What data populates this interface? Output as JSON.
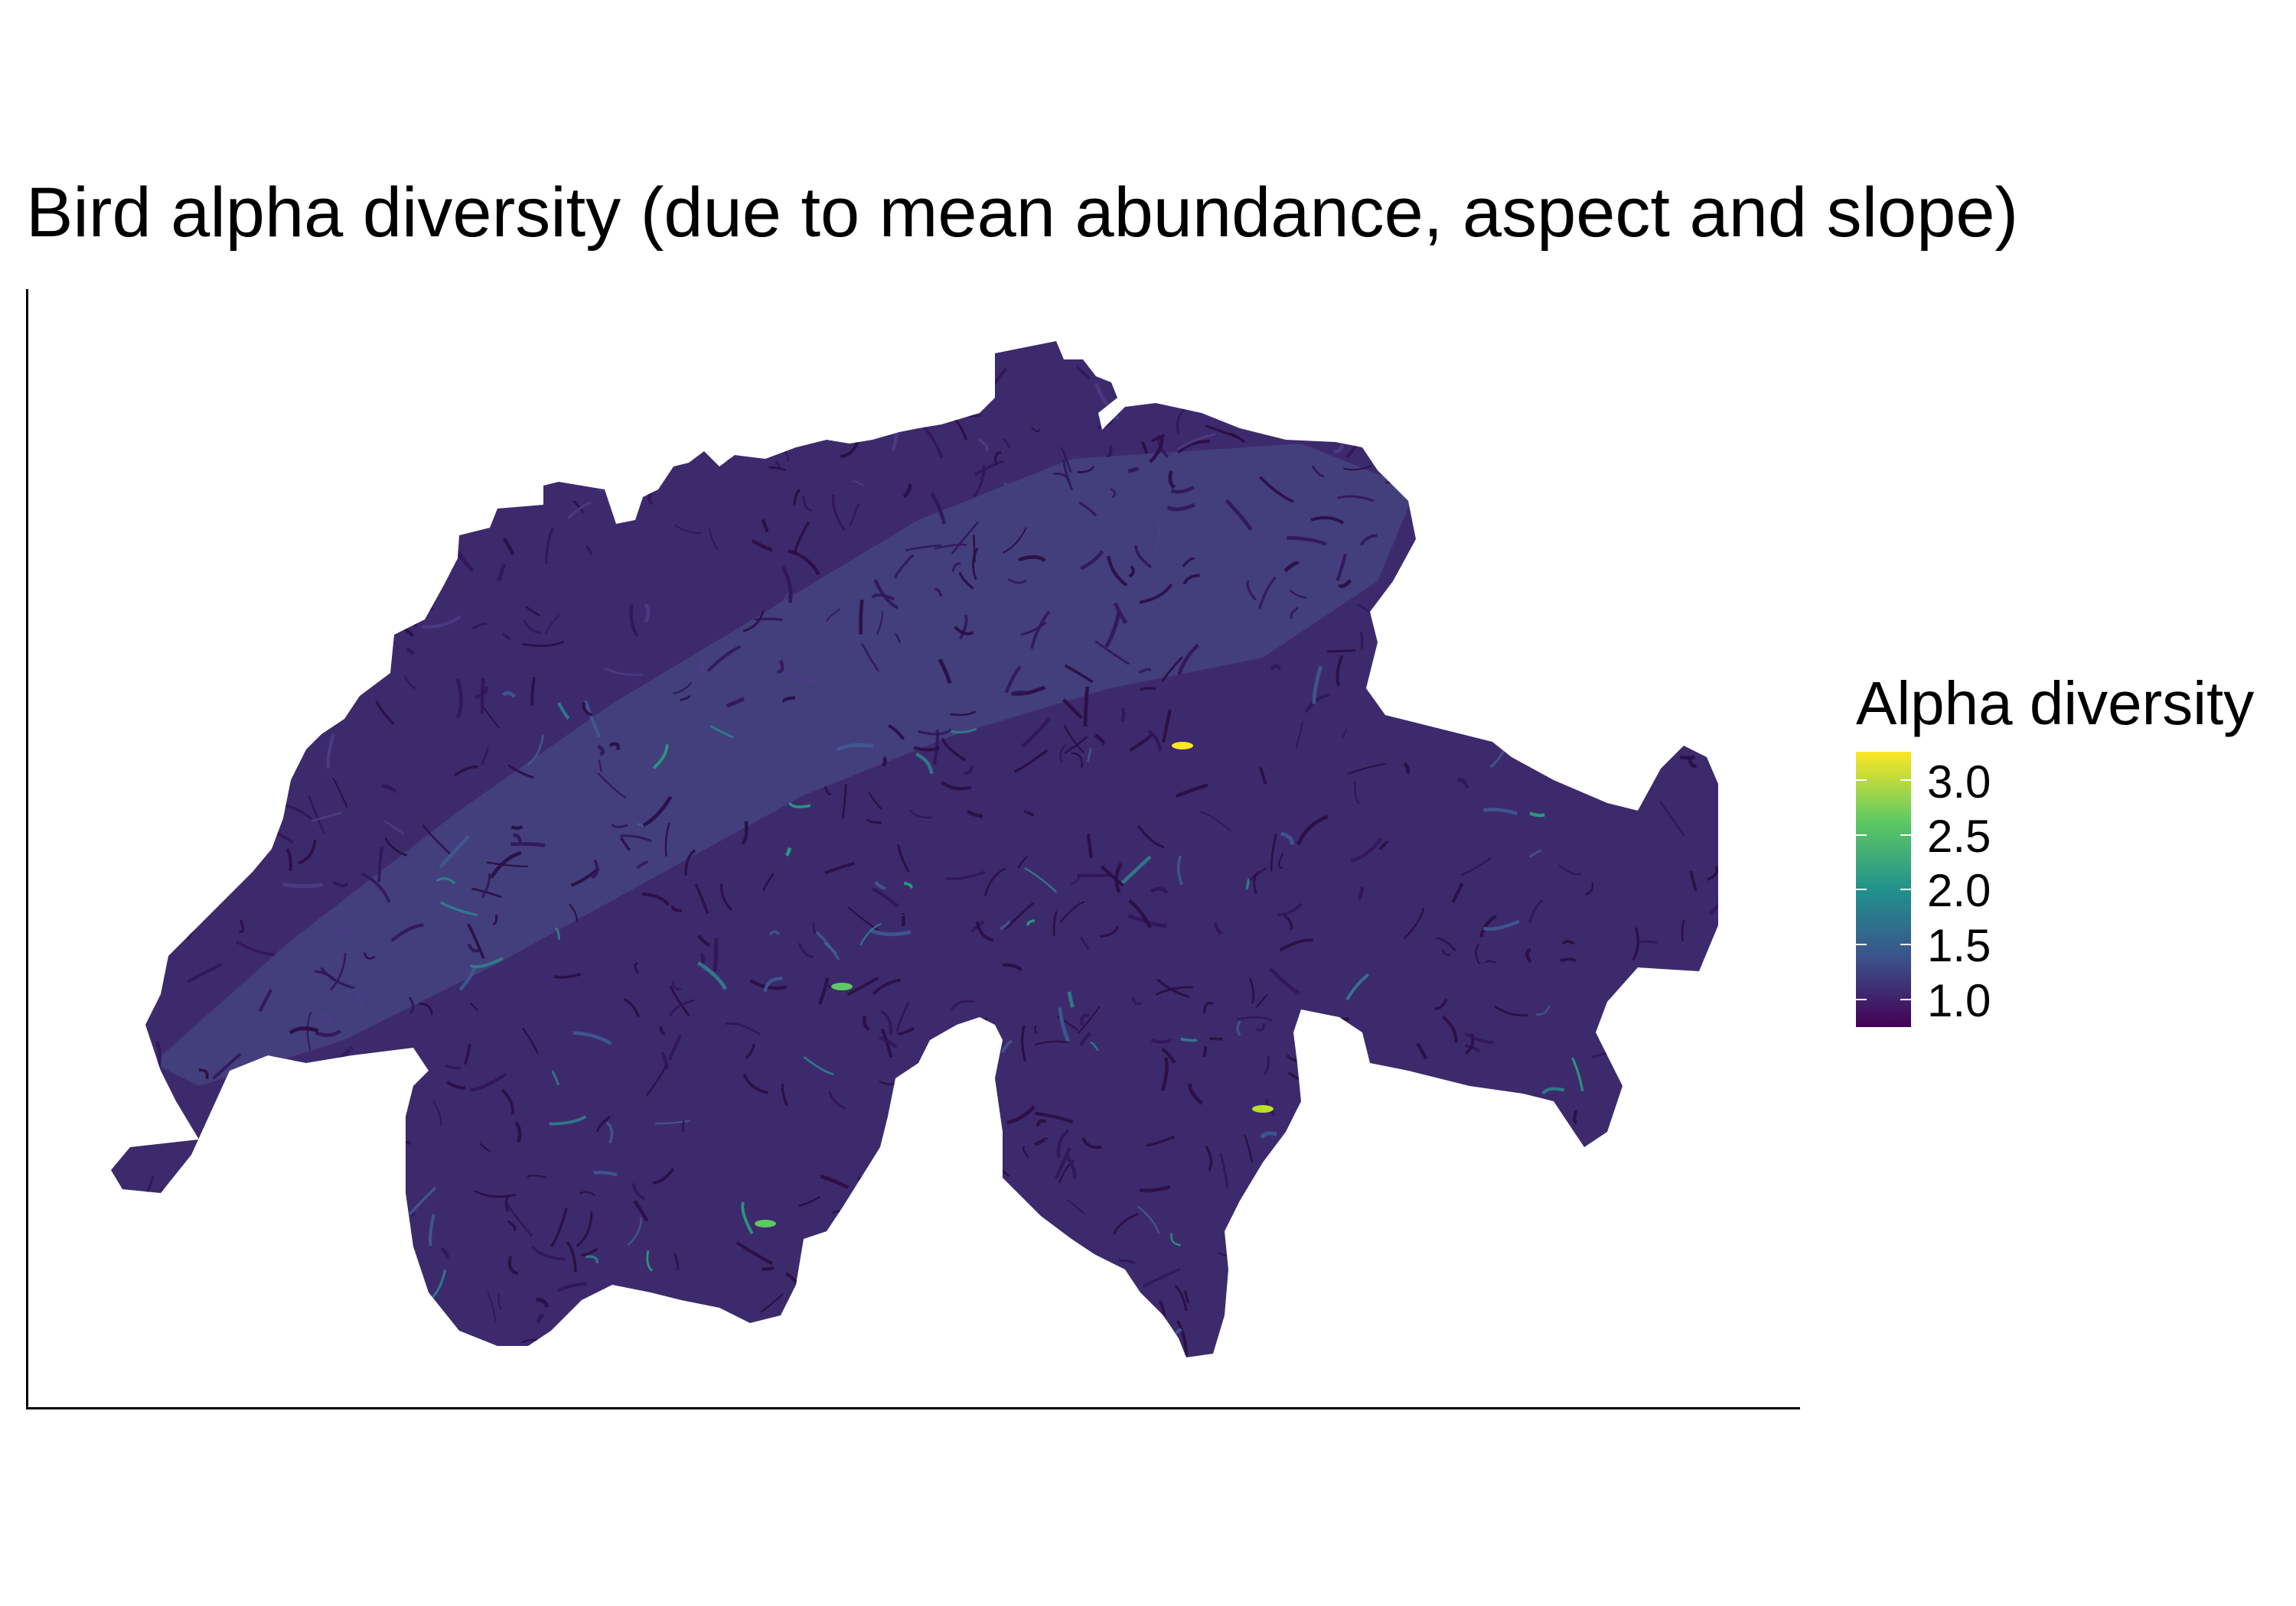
{
  "chart_data": {
    "type": "heatmap",
    "title": "Bird alpha diversity (due to mean abundance, aspect and slope)",
    "xlabel": "",
    "ylabel": "",
    "legend": {
      "title": "Alpha diversity",
      "placement": "right",
      "ticks": [
        "3.0",
        "2.5",
        "2.0",
        "1.5",
        "1.0"
      ],
      "range": [
        0.75,
        3.25
      ],
      "colors": [
        "#440154",
        "#3b528b",
        "#21918c",
        "#5ec962",
        "#fde725"
      ]
    },
    "region_fill": "#3d2a6c",
    "plateau_fill": "#44427f",
    "background": "#ffffff"
  }
}
